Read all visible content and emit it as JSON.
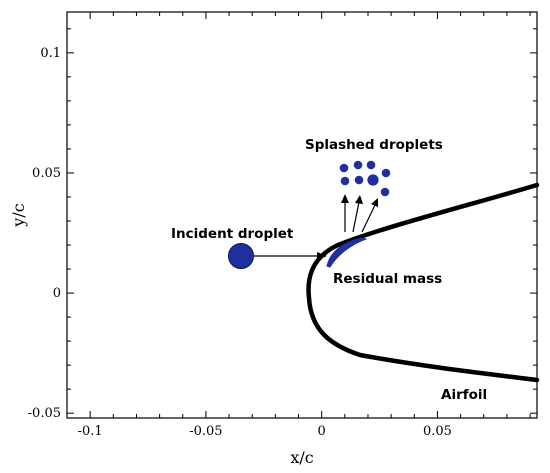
{
  "diagram": {
    "xlabel": "x/c",
    "ylabel": "y/c",
    "xlim": [
      -0.11,
      0.093
    ],
    "ylim": [
      -0.052,
      0.117
    ],
    "x_ticks": [
      {
        "value": -0.1,
        "label": "-0.1"
      },
      {
        "value": -0.05,
        "label": "-0.05"
      },
      {
        "value": 0,
        "label": "0"
      },
      {
        "value": 0.05,
        "label": "0.05"
      }
    ],
    "y_ticks": [
      {
        "value": -0.05,
        "label": "-0.05"
      },
      {
        "value": 0,
        "label": "0"
      },
      {
        "value": 0.05,
        "label": "0.05"
      },
      {
        "value": 0.1,
        "label": "0.1"
      }
    ],
    "labels": {
      "splashed": "Splashed droplets",
      "incident": "Incident droplet",
      "residual": "Residual mass",
      "airfoil": "Airfoil"
    },
    "colors": {
      "droplet": "#1f2f9e",
      "airfoil": "#000000"
    }
  }
}
